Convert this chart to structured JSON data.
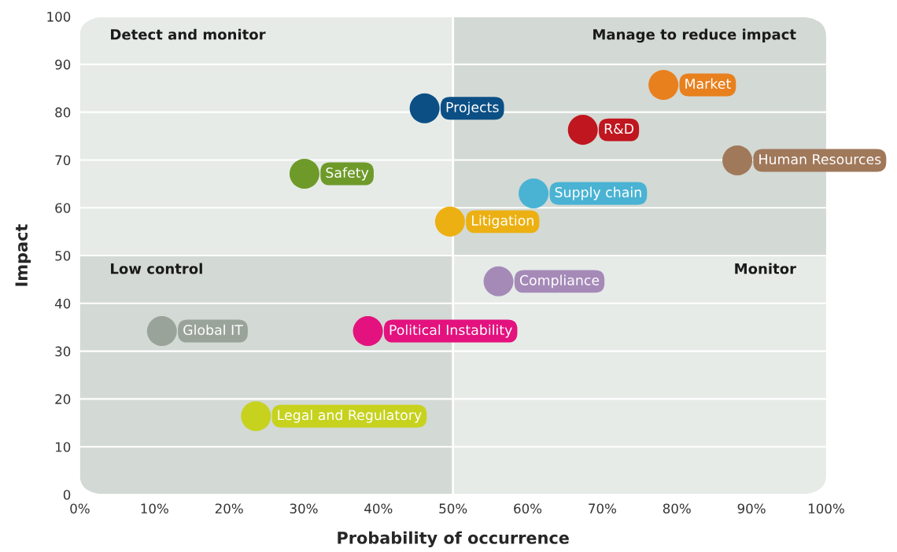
{
  "chart_data": {
    "type": "scatter",
    "xlabel": "Probability of occurrence",
    "ylabel": "Impact",
    "xlim": [
      0,
      100
    ],
    "ylim": [
      0,
      100
    ],
    "xticks": [
      {
        "value": 0,
        "label": "0%"
      },
      {
        "value": 10,
        "label": "10%"
      },
      {
        "value": 20,
        "label": "20%"
      },
      {
        "value": 30,
        "label": "30%"
      },
      {
        "value": 40,
        "label": "40%"
      },
      {
        "value": 50,
        "label": "50%"
      },
      {
        "value": 60,
        "label": "60%"
      },
      {
        "value": 70,
        "label": "70%"
      },
      {
        "value": 80,
        "label": "80%"
      },
      {
        "value": 90,
        "label": "90%"
      },
      {
        "value": 100,
        "label": "100%"
      }
    ],
    "yticks": [
      0,
      10,
      20,
      30,
      40,
      50,
      60,
      70,
      80,
      90,
      100
    ],
    "grid": "y",
    "marker": "circle",
    "ref_lines": [
      {
        "axis": "x",
        "value": 50,
        "color": "#ffffff"
      }
    ],
    "annotations": [
      "Detect and monitor",
      "Manage to reduce impact",
      "Low control",
      "Monitor"
    ],
    "series": [
      {
        "name": "Projects",
        "color": "#0b4f85",
        "x": [
          46.2
        ],
        "values": [
          80.8
        ]
      },
      {
        "name": "Market",
        "color": "#e8801e",
        "x": [
          78.2
        ],
        "values": [
          85.7
        ]
      },
      {
        "name": "R&D",
        "color": "#c0161f",
        "x": [
          67.4
        ],
        "values": [
          76.3
        ]
      },
      {
        "name": "Human Resources",
        "color": "#a0785a",
        "x": [
          88.1
        ],
        "values": [
          69.9
        ]
      },
      {
        "name": "Safety",
        "color": "#6e9a2a",
        "x": [
          30.1
        ],
        "values": [
          67.1
        ]
      },
      {
        "name": "Supply chain",
        "color": "#4ab3d3",
        "x": [
          60.8
        ],
        "values": [
          63.0
        ]
      },
      {
        "name": "Litigation",
        "color": "#ecb012",
        "x": [
          49.6
        ],
        "values": [
          57.1
        ]
      },
      {
        "name": "Compliance",
        "color": "#a58ab8",
        "x": [
          56.1
        ],
        "values": [
          44.6
        ]
      },
      {
        "name": "Global IT",
        "color": "#9aa39a",
        "x": [
          11.0
        ],
        "values": [
          34.2
        ]
      },
      {
        "name": "Political Instability",
        "color": "#e3127e",
        "x": [
          38.6
        ],
        "values": [
          34.2
        ]
      },
      {
        "name": "Legal and Regulatory",
        "color": "#c6d21e",
        "x": [
          23.6
        ],
        "values": [
          16.4
        ]
      }
    ]
  }
}
